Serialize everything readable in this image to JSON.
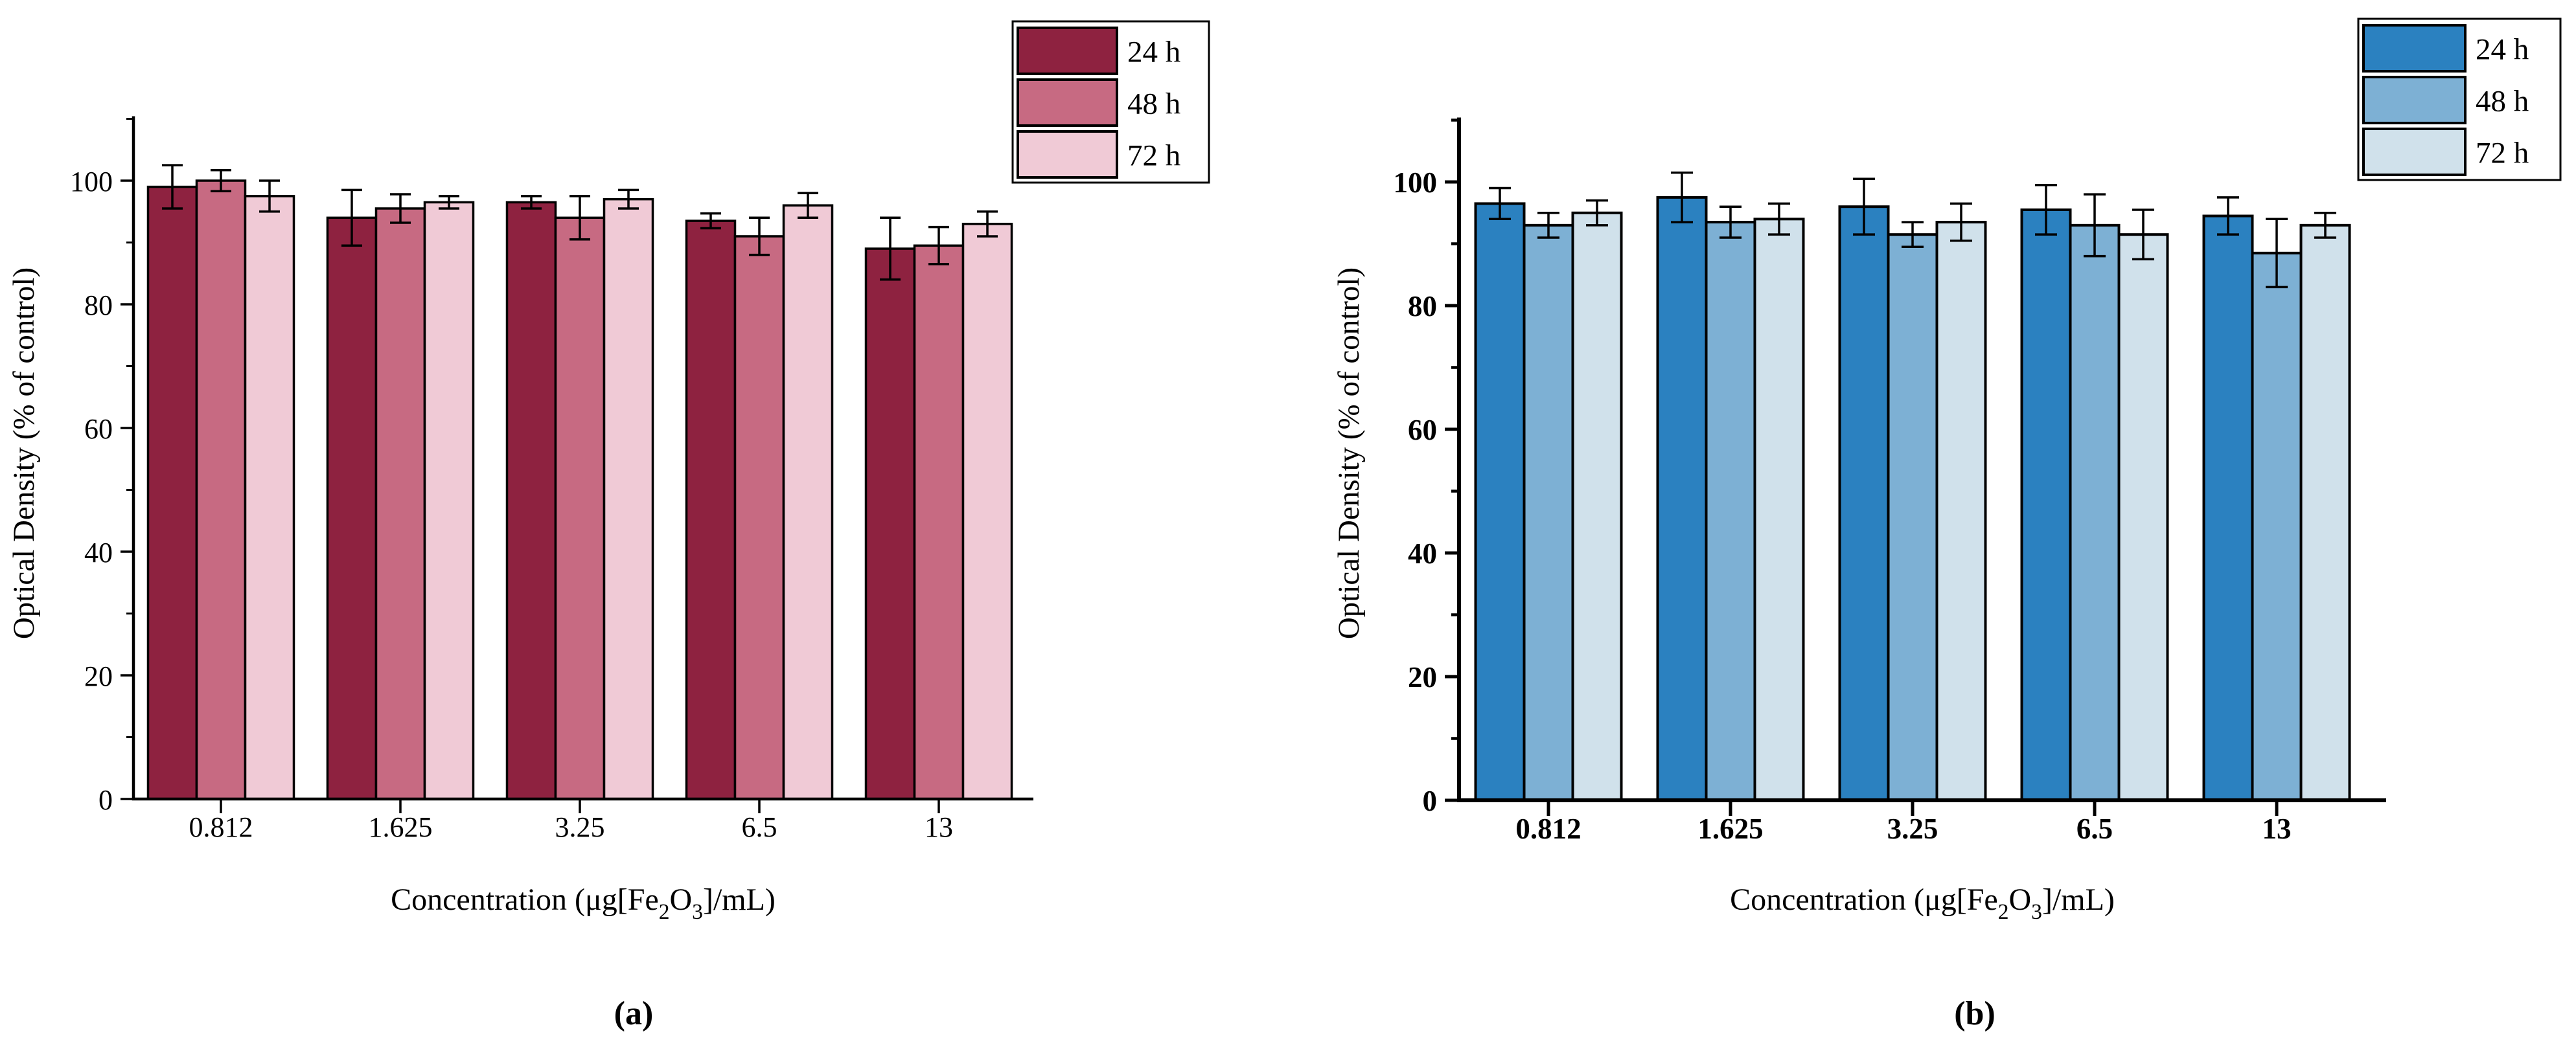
{
  "figure": {
    "caption_a": "(a)",
    "caption_b": "(b)",
    "background": "#ffffff",
    "axis_color": "#000000"
  },
  "chart_data": [
    {
      "id": "a",
      "type": "bar",
      "title": "",
      "caption": "(a)",
      "ylabel": "Optical Density (% of control)",
      "xlabel_plain": "Concentration (μg[Fe2O3]/mL)",
      "xlabel_segments": [
        {
          "t": "Concentration (μg[Fe"
        },
        {
          "t": "2",
          "sub": true
        },
        {
          "t": "O"
        },
        {
          "t": "3",
          "sub": true
        },
        {
          "t": "]/mL)"
        }
      ],
      "categories": [
        "0.812",
        "1.625",
        "3.25",
        "6.5",
        "13"
      ],
      "series": [
        {
          "name": "24 h",
          "color": "#8E2240",
          "values": [
            99,
            94,
            96.5,
            93.5,
            89
          ],
          "errors": [
            3.5,
            4.5,
            1,
            1.2,
            5
          ]
        },
        {
          "name": "48 h",
          "color": "#C76A82",
          "values": [
            100,
            95.5,
            94,
            91,
            89.5
          ],
          "errors": [
            1.7,
            2.3,
            3.5,
            3,
            3
          ]
        },
        {
          "name": "72 h",
          "color": "#F0CAD6",
          "values": [
            97.5,
            96.5,
            97,
            96,
            93
          ],
          "errors": [
            2.5,
            1,
            1.5,
            2,
            2
          ]
        }
      ],
      "y_major_ticks": [
        0,
        20,
        40,
        60,
        80,
        100
      ],
      "y_minor_ticks": [
        10,
        30,
        50,
        70,
        90,
        110
      ],
      "ylim": [
        0,
        110
      ],
      "grid": false,
      "legend_position": "top-right",
      "legend_labels": [
        "24 h",
        "48 h",
        "72 h"
      ]
    },
    {
      "id": "b",
      "type": "bar",
      "title": "",
      "caption": "(b)",
      "ylabel": "Optical Density (% of control)",
      "xlabel_plain": "Concentration (μg[Fe2O3]/mL)",
      "xlabel_segments": [
        {
          "t": "Concentration (μg[Fe"
        },
        {
          "t": "2",
          "sub": true
        },
        {
          "t": "O"
        },
        {
          "t": "3",
          "sub": true
        },
        {
          "t": "]/mL)"
        }
      ],
      "categories": [
        "0.812",
        "1.625",
        "3.25",
        "6.5",
        "13"
      ],
      "series": [
        {
          "name": "24 h",
          "color": "#2B81C0",
          "values": [
            96.5,
            97.5,
            96,
            95.5,
            94.5
          ],
          "errors": [
            2.5,
            4,
            4.5,
            4,
            3
          ]
        },
        {
          "name": "48 h",
          "color": "#7DB0D4",
          "values": [
            93,
            93.5,
            91.5,
            93,
            88.5
          ],
          "errors": [
            2,
            2.5,
            2,
            5,
            5.5
          ]
        },
        {
          "name": "72 h",
          "color": "#D0E1EB",
          "values": [
            95,
            94,
            93.5,
            91.5,
            93
          ],
          "errors": [
            2,
            2.5,
            3,
            4,
            2
          ]
        }
      ],
      "y_major_ticks": [
        0,
        20,
        40,
        60,
        80,
        100
      ],
      "y_minor_ticks": [
        10,
        30,
        50,
        70,
        90,
        110
      ],
      "ylim": [
        0,
        110
      ],
      "grid": false,
      "legend_position": "top-right",
      "legend_labels": [
        "24 h",
        "48 h",
        "72 h"
      ]
    }
  ]
}
